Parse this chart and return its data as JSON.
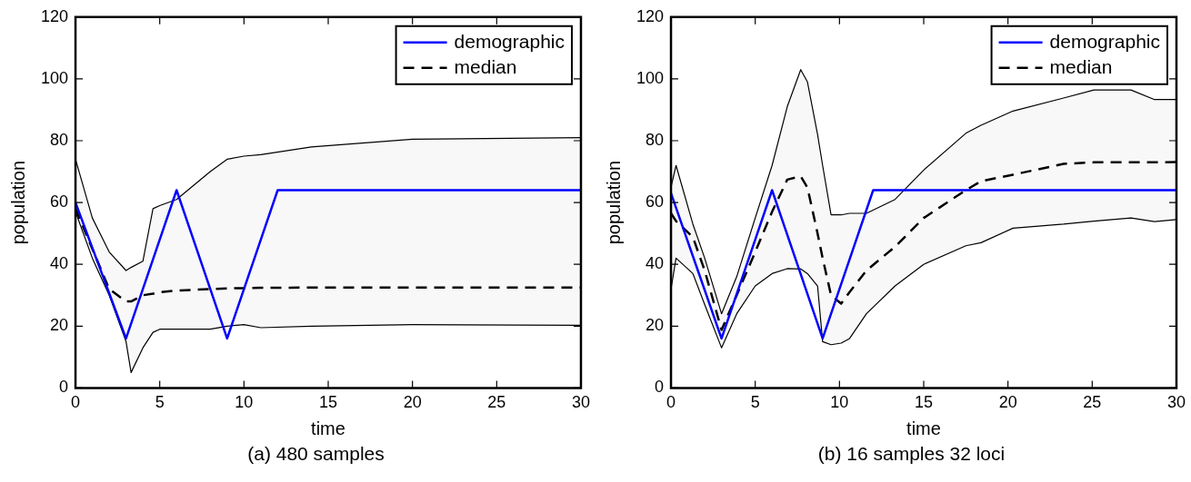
{
  "chart_data": [
    {
      "type": "line",
      "xlabel": "time",
      "ylabel": "population",
      "xlim": [
        0,
        30
      ],
      "xticks": [
        0,
        5,
        10,
        15,
        20,
        25,
        30
      ],
      "ylim": [
        0,
        120
      ],
      "yticks": [
        0,
        20,
        40,
        60,
        80,
        100,
        120
      ],
      "legend": "top right",
      "annotations": [
        "(a) 480 samples"
      ],
      "series": [
        {
          "name": "demographic",
          "color": "#0000ff",
          "line_style": "solid",
          "x": [
            0,
            3,
            6,
            9,
            12,
            30
          ],
          "values": [
            60,
            16,
            64,
            16,
            64,
            64
          ]
        },
        {
          "name": "median",
          "color": "#000000",
          "line_style": "dashed",
          "x": [
            0,
            1,
            2,
            3,
            3.3,
            4,
            4.6,
            5,
            6,
            8,
            9,
            10,
            11,
            14,
            20,
            30
          ],
          "values": [
            58,
            45,
            32,
            28,
            28,
            30,
            30.5,
            31,
            31.5,
            32,
            32.2,
            32.3,
            32.4,
            32.5,
            32.5,
            32.5
          ],
          "lower": [
            57,
            42,
            30,
            15,
            5,
            13,
            18,
            19,
            19,
            19,
            20,
            20.5,
            19.5,
            20,
            20.5,
            20.3
          ],
          "upper": [
            74,
            55,
            44,
            38,
            39,
            41,
            58,
            59,
            61,
            70,
            74,
            75,
            75.5,
            78,
            80.5,
            81
          ]
        },
        {
          "color": "#000000",
          "line_style": "solid",
          "x": [
            0,
            1,
            2,
            3,
            3.3,
            4,
            4.6,
            5,
            6,
            8,
            9,
            10,
            11,
            14,
            20,
            30
          ],
          "values": [
            74,
            55,
            44,
            38,
            39,
            41,
            58,
            59,
            61,
            70,
            74,
            75,
            75.5,
            78,
            80.5,
            81
          ]
        },
        {
          "color": "#000000",
          "line_style": "solid",
          "x": [
            0,
            1,
            2,
            3,
            3.3,
            4,
            4.6,
            5,
            6,
            8,
            9,
            10,
            11,
            14,
            20,
            30
          ],
          "values": [
            57,
            42,
            30,
            15,
            5,
            13,
            18,
            19,
            19,
            19,
            20,
            20.5,
            19.5,
            20,
            20.5,
            20.3
          ]
        }
      ]
    },
    {
      "type": "line",
      "xlabel": "time",
      "ylabel": "population",
      "xlim": [
        0,
        30
      ],
      "xticks": [
        0,
        5,
        10,
        15,
        20,
        25,
        30
      ],
      "ylim": [
        0,
        120
      ],
      "yticks": [
        0,
        20,
        40,
        60,
        80,
        100,
        120
      ],
      "legend": "top right",
      "annotations": [
        "(b) 16 samples 32 loci"
      ],
      "series": [
        {
          "name": "demographic",
          "color": "#0000ff",
          "line_style": "solid",
          "x": [
            0,
            3,
            6,
            9,
            12,
            30
          ],
          "values": [
            63,
            16,
            64,
            16,
            64,
            64
          ]
        },
        {
          "name": "median",
          "color": "#000000",
          "line_style": "dashed",
          "x": [
            0,
            0.3,
            1.3,
            2,
            3,
            3.9,
            5,
            6,
            6.9,
            7.7,
            8.1,
            8.7,
            9,
            9.5,
            10.1,
            10.6,
            11.6,
            13.3,
            15,
            17.5,
            18.4,
            20.3,
            23.3,
            25.1,
            27.3,
            28.7,
            30
          ],
          "values": [
            56.5,
            54,
            48.8,
            38,
            18.8,
            30,
            44,
            57,
            67.4,
            68.5,
            64.8,
            50,
            42,
            30,
            27.3,
            31,
            38,
            45.7,
            55,
            64,
            66.9,
            69,
            72.5,
            73,
            73,
            73,
            73.1
          ],
          "lower": [
            32,
            42,
            37,
            27,
            13,
            24,
            33,
            37,
            38.6,
            38.5,
            37,
            33,
            15,
            14,
            14.5,
            16,
            24,
            33,
            40,
            46,
            47,
            51.7,
            53,
            54,
            55,
            53.8,
            54.5
          ],
          "upper": [
            65,
            72,
            53,
            42,
            24,
            36,
            55,
            72,
            91,
            103,
            99,
            82,
            72,
            56,
            56,
            56.5,
            56.5,
            61,
            70.5,
            82.4,
            85,
            89.6,
            93.8,
            96.4,
            96.4,
            93.3,
            93.3
          ]
        },
        {
          "color": "#000000",
          "line_style": "solid",
          "x": [
            0,
            0.3,
            1.3,
            2,
            3,
            3.9,
            5,
            6,
            6.9,
            7.7,
            8.1,
            8.7,
            9,
            9.5,
            10.1,
            10.6,
            11.6,
            13.3,
            15,
            17.5,
            18.4,
            20.3,
            23.3,
            25.1,
            27.3,
            28.7,
            30
          ],
          "values": [
            65,
            72,
            53,
            42,
            24,
            36,
            55,
            72,
            91,
            103,
            99,
            82,
            72,
            56,
            56,
            56.5,
            56.5,
            61,
            70.5,
            82.4,
            85,
            89.6,
            93.8,
            96.4,
            96.4,
            93.3,
            93.3
          ]
        },
        {
          "color": "#000000",
          "line_style": "solid",
          "x": [
            0,
            0.3,
            1.3,
            2,
            3,
            3.9,
            5,
            6,
            6.9,
            7.7,
            8.1,
            8.7,
            9,
            9.5,
            10.1,
            10.6,
            11.6,
            13.3,
            15,
            17.5,
            18.4,
            20.3,
            23.3,
            25.1,
            27.3,
            28.7,
            30
          ],
          "values": [
            32,
            42,
            37,
            27,
            13,
            24,
            33,
            37,
            38.6,
            38.5,
            37,
            33,
            15,
            14,
            14.5,
            16,
            24,
            33,
            40,
            46,
            47,
            51.7,
            53,
            54,
            55,
            53.8,
            54.5
          ]
        }
      ]
    }
  ]
}
